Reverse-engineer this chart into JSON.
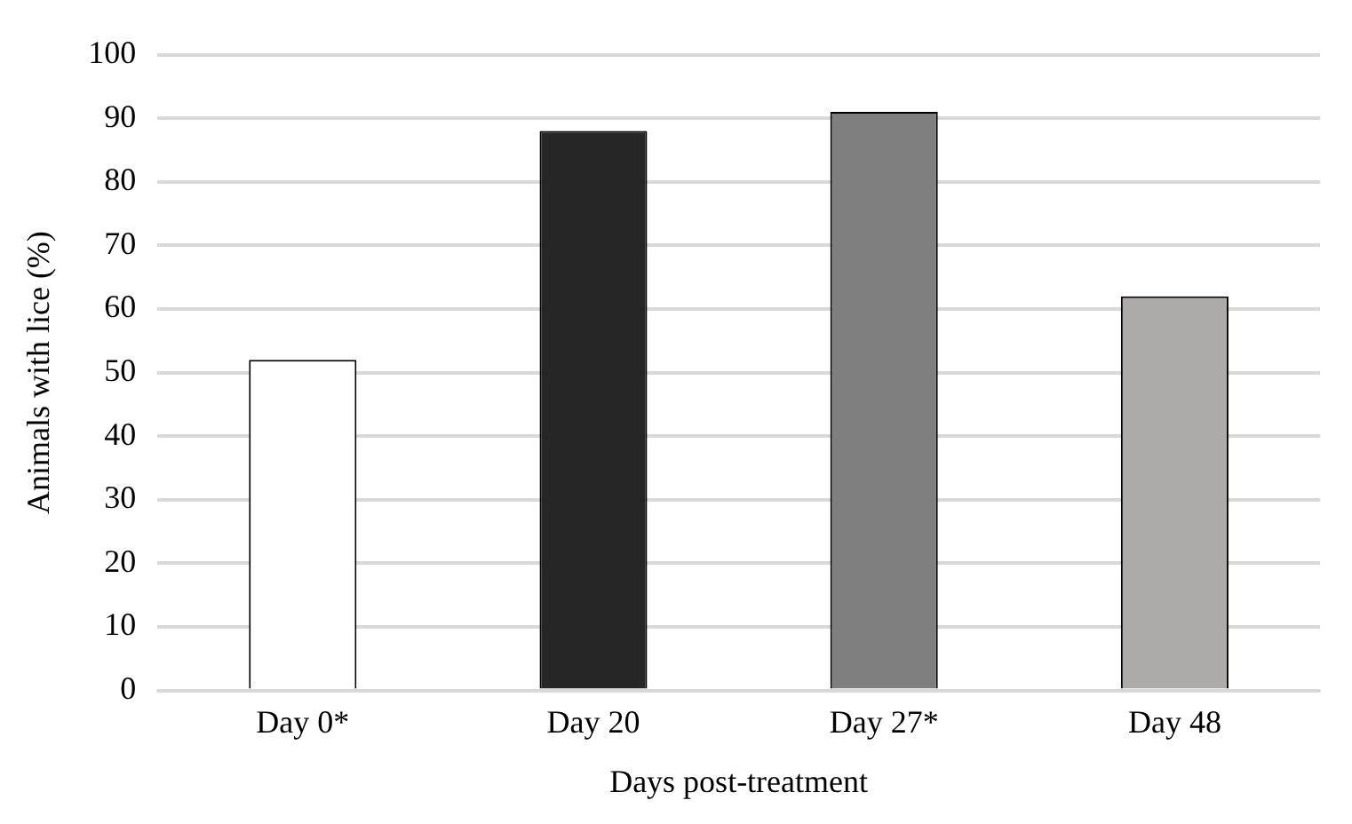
{
  "chart_data": {
    "type": "bar",
    "xlabel": "Days post-treatment",
    "ylabel": "Animals with lice (%)",
    "categories": [
      "Day 0*",
      "Day 20",
      "Day 27*",
      "Day 48"
    ],
    "values": [
      52,
      88,
      91,
      62
    ],
    "colors": [
      "#ffffff",
      "#262626",
      "#7f7f7f",
      "#aeaaaa"
    ],
    "ylim": [
      0,
      100
    ],
    "yticks": [
      0,
      10,
      20,
      30,
      40,
      50,
      60,
      70,
      80,
      90,
      100
    ],
    "grid": "y",
    "legend": false
  }
}
